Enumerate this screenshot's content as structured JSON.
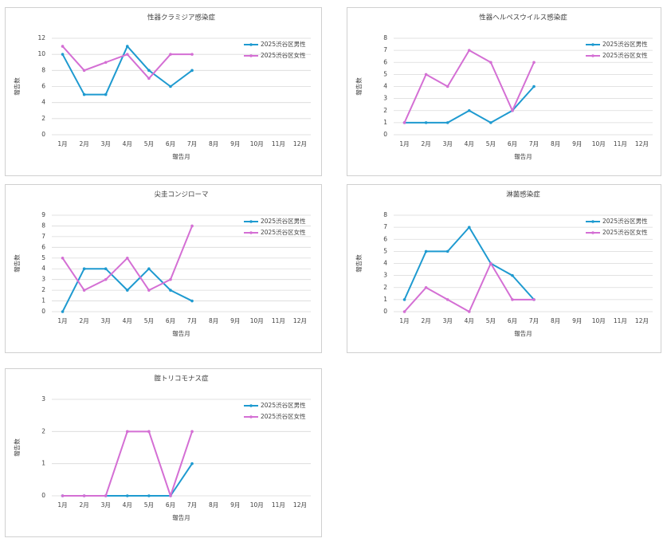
{
  "chart_data": [
    {
      "type": "line",
      "title": "性器クラミジア感染症",
      "xlabel": "報告月",
      "ylabel": "報告数",
      "categories": [
        "1月",
        "2月",
        "3月",
        "4月",
        "5月",
        "6月",
        "7月",
        "8月",
        "9月",
        "10月",
        "11月",
        "12月"
      ],
      "series": [
        {
          "name": "2025渋谷区男性",
          "color": "#1e9ad0",
          "values": [
            10,
            5,
            5,
            11,
            8,
            6,
            8,
            null,
            null,
            null,
            null,
            null
          ]
        },
        {
          "name": "2025渋谷区女性",
          "color": "#d46fd4",
          "values": [
            11,
            8,
            9,
            10,
            7,
            10,
            10,
            null,
            null,
            null,
            null,
            null
          ]
        }
      ],
      "ylim": [
        0,
        12
      ],
      "yticks": [
        0,
        2,
        4,
        6,
        8,
        10,
        12
      ],
      "grid": true,
      "legend": "upper right"
    },
    {
      "type": "line",
      "title": "性器ヘルペスウイルス感染症",
      "xlabel": "報告月",
      "ylabel": "報告数",
      "categories": [
        "1月",
        "2月",
        "3月",
        "4月",
        "5月",
        "6月",
        "7月",
        "8月",
        "9月",
        "10月",
        "11月",
        "12月"
      ],
      "series": [
        {
          "name": "2025渋谷区男性",
          "color": "#1e9ad0",
          "values": [
            1,
            1,
            1,
            2,
            1,
            2,
            4,
            null,
            null,
            null,
            null,
            null
          ]
        },
        {
          "name": "2025渋谷区女性",
          "color": "#d46fd4",
          "values": [
            1,
            5,
            4,
            7,
            6,
            2,
            6,
            null,
            null,
            null,
            null,
            null
          ]
        }
      ],
      "ylim": [
        0,
        8
      ],
      "yticks": [
        0,
        1,
        2,
        3,
        4,
        5,
        6,
        7,
        8
      ],
      "grid": true,
      "legend": "upper right"
    },
    {
      "type": "line",
      "title": "尖圭コンジローマ",
      "xlabel": "報告月",
      "ylabel": "報告数",
      "categories": [
        "1月",
        "2月",
        "3月",
        "4月",
        "5月",
        "6月",
        "7月",
        "8月",
        "9月",
        "10月",
        "11月",
        "12月"
      ],
      "series": [
        {
          "name": "2025渋谷区男性",
          "color": "#1e9ad0",
          "values": [
            0,
            4,
            4,
            2,
            4,
            2,
            1,
            null,
            null,
            null,
            null,
            null
          ]
        },
        {
          "name": "2025渋谷区女性",
          "color": "#d46fd4",
          "values": [
            5,
            2,
            3,
            5,
            2,
            3,
            8,
            null,
            null,
            null,
            null,
            null
          ]
        }
      ],
      "ylim": [
        0,
        9
      ],
      "yticks": [
        0,
        1,
        2,
        3,
        4,
        5,
        6,
        7,
        8,
        9
      ],
      "grid": true,
      "legend": "upper right"
    },
    {
      "type": "line",
      "title": "淋菌感染症",
      "xlabel": "報告月",
      "ylabel": "報告数",
      "categories": [
        "1月",
        "2月",
        "3月",
        "4月",
        "5月",
        "6月",
        "7月",
        "8月",
        "9月",
        "10月",
        "11月",
        "12月"
      ],
      "series": [
        {
          "name": "2025渋谷区男性",
          "color": "#1e9ad0",
          "values": [
            1,
            5,
            5,
            7,
            4,
            3,
            1,
            null,
            null,
            null,
            null,
            null
          ]
        },
        {
          "name": "2025渋谷区女性",
          "color": "#d46fd4",
          "values": [
            0,
            2,
            1,
            0,
            4,
            1,
            1,
            null,
            null,
            null,
            null,
            null
          ]
        }
      ],
      "ylim": [
        0,
        8
      ],
      "yticks": [
        0,
        1,
        2,
        3,
        4,
        5,
        6,
        7,
        8
      ],
      "grid": true,
      "legend": "upper right"
    },
    {
      "type": "line",
      "title": "腟トリコモナス症",
      "xlabel": "報告月",
      "ylabel": "報告数",
      "categories": [
        "1月",
        "2月",
        "3月",
        "4月",
        "5月",
        "6月",
        "7月",
        "8月",
        "9月",
        "10月",
        "11月",
        "12月"
      ],
      "series": [
        {
          "name": "2025渋谷区男性",
          "color": "#1e9ad0",
          "values": [
            0,
            0,
            0,
            0,
            0,
            0,
            1,
            null,
            null,
            null,
            null,
            null
          ]
        },
        {
          "name": "2025渋谷区女性",
          "color": "#d46fd4",
          "values": [
            0,
            0,
            0,
            2,
            2,
            0,
            2,
            null,
            null,
            null,
            null,
            null
          ]
        }
      ],
      "ylim": [
        0,
        3
      ],
      "yticks": [
        0,
        1,
        2,
        3
      ],
      "grid": true,
      "legend": "upper right"
    }
  ]
}
